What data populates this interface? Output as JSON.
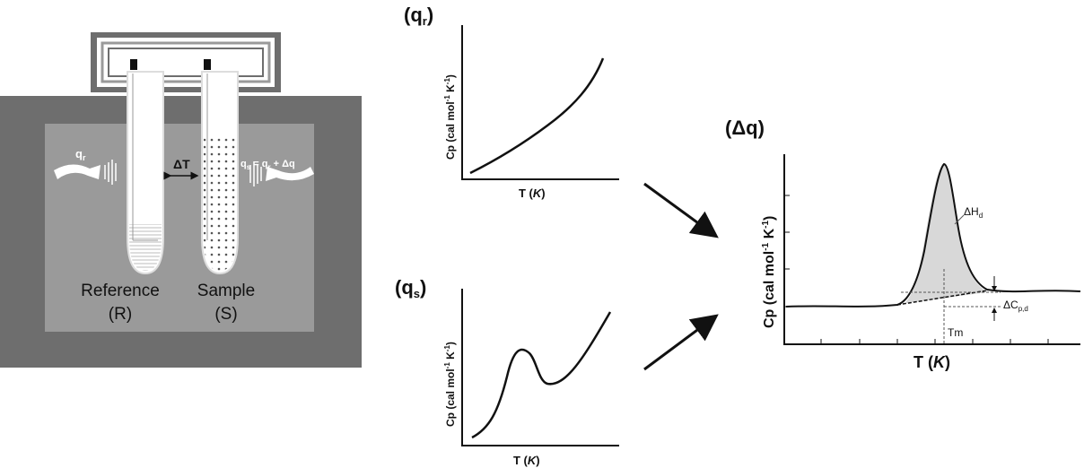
{
  "apparatus": {
    "heat_in_left": "q",
    "heat_in_left_sub": "r",
    "delta_t": "ΔT",
    "heat_in_right": "q",
    "heat_in_right_sub": "s",
    "heat_in_right_rest": " = q",
    "heat_in_right_sub2": "r",
    "heat_in_right_tail": " + Δq",
    "reference_label": "Reference",
    "reference_abbr": "(R)",
    "sample_label": "Sample",
    "sample_abbr": "(S)"
  },
  "panels": {
    "qr": {
      "title_main": "(q",
      "title_sub": "r",
      "title_end": ")",
      "ylabel": "Cp (cal mol",
      "ylabel_tail": " K",
      "xlabel_main": "T (",
      "xlabel_unit": "K",
      "xlabel_end": ")"
    },
    "qs": {
      "title_main": "(q",
      "title_sub": "s",
      "title_end": ")",
      "ylabel": "Cp (cal mol",
      "ylabel_tail": " K",
      "xlabel_main": "T (",
      "xlabel_unit": "K",
      "xlabel_end": ")"
    },
    "dq": {
      "title": "(Δq)",
      "ylabel": "Cp (cal mol",
      "ylabel_tail": " K",
      "xlabel_main": "T (",
      "xlabel_unit": "K",
      "xlabel_end": ")",
      "ann_dh": "ΔH",
      "ann_dh_sub": "d",
      "ann_dcp": "ΔC",
      "ann_dcp_sub": "p,d",
      "ann_tm": "Tm"
    }
  },
  "colors": {
    "outer_box": "#6e6e6e",
    "inner_box": "#9a9a9a",
    "shaded_peak": "#d8d8d8"
  },
  "chart_data": [
    {
      "type": "line",
      "title": "(qr)",
      "xlabel": "T (K)",
      "ylabel": "Cp (cal mol-1 K-1)",
      "series": [
        {
          "values": "monotonically increasing curve"
        }
      ]
    },
    {
      "type": "line",
      "title": "(qs)",
      "xlabel": "T (K)",
      "ylabel": "Cp (cal mol-1 K-1)",
      "series": [
        {
          "values": "rising curve with a local peak then continuing rise"
        }
      ]
    },
    {
      "type": "line",
      "title": "(Δq)",
      "xlabel": "T (K)",
      "ylabel": "Cp (cal mol-1 K-1)",
      "annotations": [
        "ΔHd",
        "ΔCp,d",
        "Tm"
      ]
    }
  ]
}
